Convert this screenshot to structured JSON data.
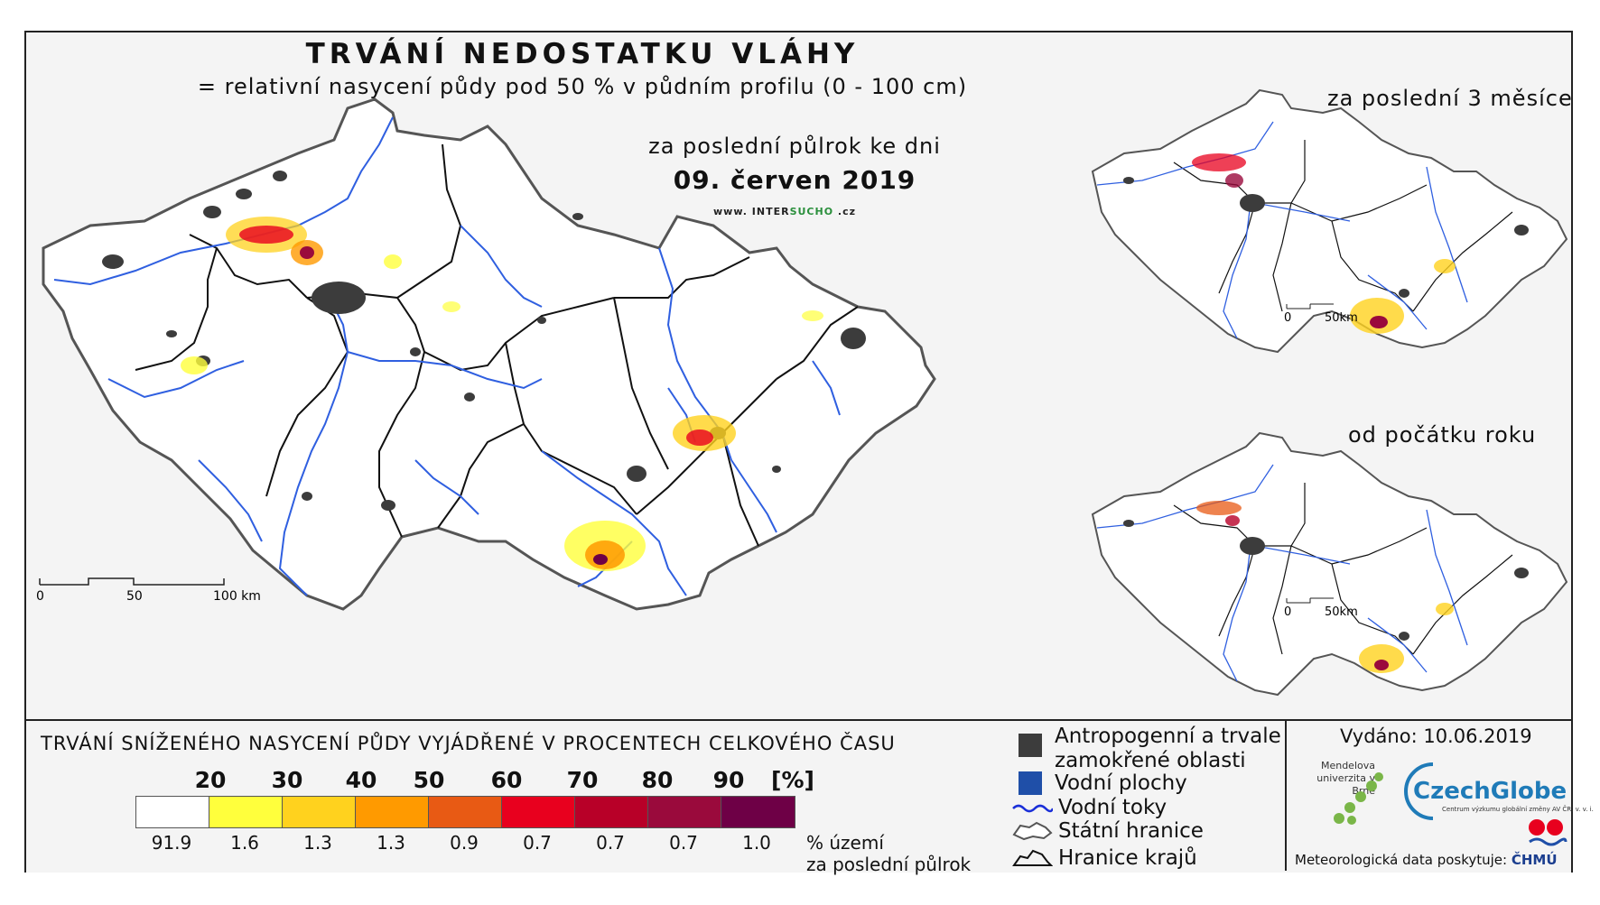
{
  "header": {
    "title": "TRVÁNÍ NEDOSTATKU VLÁHY",
    "subtitle": "= relativní nasycení půdy pod 50 % v půdním profilu (0 - 100 cm)",
    "period": "za poslední půlrok ke dni",
    "date": "09. červen 2019",
    "web_a": "www. INTER",
    "web_b": "SUCHO",
    "web_c": " .cz"
  },
  "main_map": {
    "scale_labels": [
      "0",
      "50",
      "100 km"
    ],
    "hotspots": [
      "north-west Bohemia (Most/Louny)",
      "Prague",
      "central Moravia (Olomouc)",
      "south Moravia (Znojmo/Brno)"
    ]
  },
  "insets": [
    {
      "title": "za poslední 3 měsíce",
      "scale_labels": [
        "0",
        "50km"
      ]
    },
    {
      "title": "od počátku roku",
      "scale_labels": [
        "0",
        "50km"
      ]
    }
  ],
  "legend": {
    "title": "TRVÁNÍ SNÍŽENÉHO NASYCENÍ PŮDY VYJÁDŘENÉ V PROCENTECH CELKOVÉHO ČASU",
    "class_labels": [
      "20",
      "30",
      "40",
      "50",
      "60",
      "70",
      "80",
      "90",
      "[%]"
    ],
    "colors": [
      "#ffffff",
      "#ffff3c",
      "#ffd21e",
      "#ff9a00",
      "#e85a14",
      "#e8001e",
      "#b80028",
      "#9a0a3c",
      "#6e0046"
    ],
    "percent_values": [
      "91.9",
      "1.6",
      "1.3",
      "1.3",
      "0.9",
      "0.7",
      "0.7",
      "0.7",
      "1.0"
    ],
    "percent_unit_1": "% území",
    "percent_unit_2": "za poslední půlrok"
  },
  "key": {
    "items": [
      {
        "label": "Antropogenní a trvale",
        "label2": "zamokřené oblasti",
        "color": "#3c3c3c"
      },
      {
        "label": "Vodní plochy",
        "color": "#1f4fa8"
      },
      {
        "label": "Vodní toky",
        "color": "#1a2fd8"
      },
      {
        "label": "Státní hranice",
        "color": "#555555"
      },
      {
        "label": "Hranice krajů",
        "color": "#111111"
      }
    ]
  },
  "footer": {
    "issued": "Vydáno: 10.06.2019",
    "mendel": "Mendelova univerzita v Brně",
    "czechglobe": "CzechGlobe",
    "czechglobe_sub": "Centrum výzkumu globální změny AV ČR, v. v. i.",
    "meteo": "Meteorologická data poskytuje:",
    "chmu": "ČHMÚ"
  }
}
